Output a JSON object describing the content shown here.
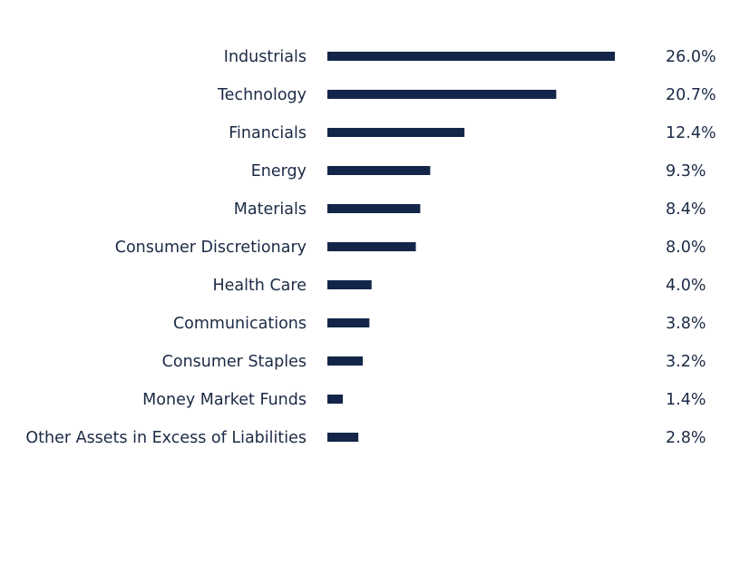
{
  "chart_data": {
    "type": "bar",
    "orientation": "horizontal",
    "categories": [
      "Industrials",
      "Technology",
      "Financials",
      "Energy",
      "Materials",
      "Consumer Discretionary",
      "Health Care",
      "Communications",
      "Consumer Staples",
      "Money Market Funds",
      "Other Assets in Excess of Liabilities"
    ],
    "values": [
      26.0,
      20.7,
      12.4,
      9.3,
      8.4,
      8.0,
      4.0,
      3.8,
      3.2,
      1.4,
      2.8
    ],
    "value_labels": [
      "26.0%",
      "20.7%",
      "12.4%",
      "9.3%",
      "8.4%",
      "8.0%",
      "4.0%",
      "3.8%",
      "3.2%",
      "1.4%",
      "2.8%"
    ],
    "xlim": [
      0,
      26.0
    ],
    "grid": false,
    "bar_color": "#13264a",
    "text_color": "#1b2a45"
  }
}
